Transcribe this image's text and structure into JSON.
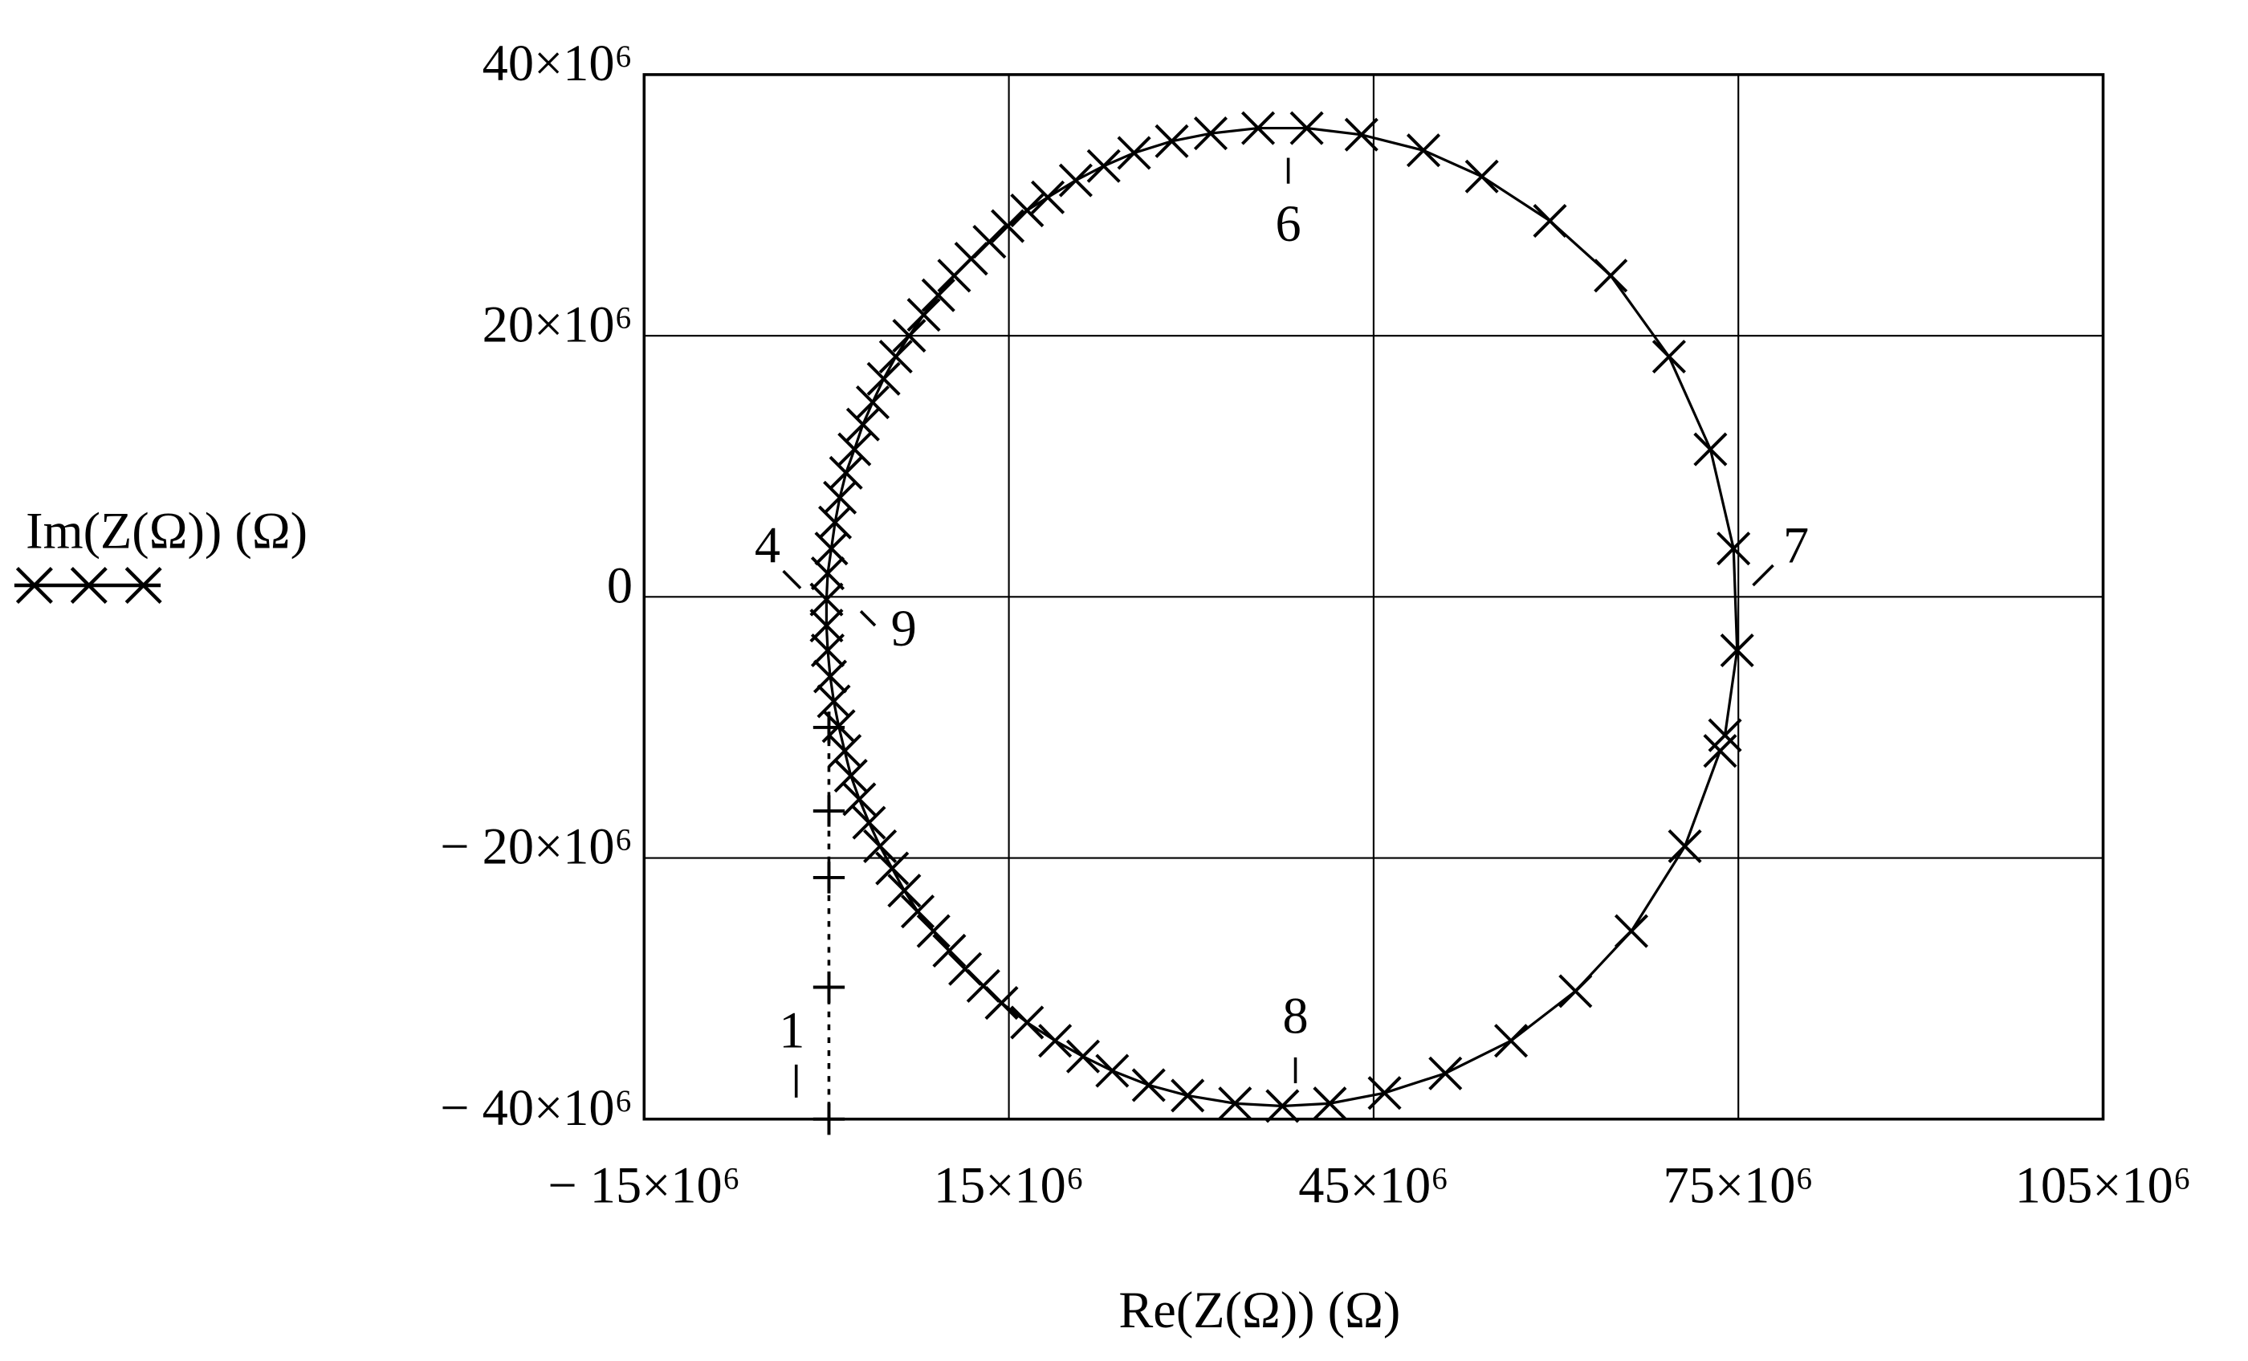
{
  "chart_data": {
    "type": "scatter",
    "x_label": "Re(Z(Ω)) (Ω)",
    "y_label": "Im(Z(Ω)) (Ω)",
    "xlim": [
      -15000000,
      105000000
    ],
    "ylim": [
      -40000000,
      40000000
    ],
    "xticks": [
      {
        "value": -15000000,
        "label": "− 15×10⁶"
      },
      {
        "value": 15000000,
        "label": "15×10⁶"
      },
      {
        "value": 45000000,
        "label": "45×10⁶"
      },
      {
        "value": 75000000,
        "label": "75×10⁶"
      },
      {
        "value": 105000000,
        "label": "105×10⁶"
      }
    ],
    "yticks": [
      {
        "value": -40000000,
        "label": "− 40×10⁶"
      },
      {
        "value": -20000000,
        "label": "− 20×10⁶"
      },
      0,
      {
        "value": 20000000,
        "label": "20×10⁶"
      },
      {
        "value": 40000000,
        "label": "40×10⁶"
      }
    ],
    "grid": true,
    "series": [
      {
        "color": "#000000",
        "marker": "x",
        "line": "solid",
        "x": [
          73900000,
          74900000,
          74600000,
          72700000,
          69300000,
          64500000,
          59500000,
          53900000,
          49100000,
          44000000,
          39500000,
          35500000,
          31600000,
          28400000,
          25300000,
          22800000,
          20500000,
          18200000,
          16500000,
          14900000,
          13400000,
          11900000,
          10500000,
          9200000,
          8000000,
          6800000,
          5700000,
          4700000,
          3800000,
          3000000,
          2300000,
          1600000,
          1100000,
          700000,
          400000,
          100000,
          0,
          0,
          100000,
          300000,
          600000,
          1000000,
          1500000,
          2000000,
          2700000,
          3500000,
          4400000,
          5400000,
          6400000,
          7500000,
          8800000,
          10100000,
          11400000,
          12900000,
          14400000,
          16500000,
          18800000,
          21100000,
          23500000,
          26500000,
          29700000,
          33600000,
          37500000,
          41400000,
          45900000,
          50900000,
          56300000,
          61600000,
          66200000,
          70600000,
          73500000
        ],
        "y": [
          -10600000,
          -4100000,
          3700000,
          11300000,
          18400000,
          24600000,
          28800000,
          32200000,
          34200000,
          35400000,
          35900000,
          35900000,
          35500000,
          34900000,
          34000000,
          33000000,
          31900000,
          30600000,
          29600000,
          28400000,
          27200000,
          25900000,
          24600000,
          23100000,
          21600000,
          20000000,
          18400000,
          16700000,
          14900000,
          13200000,
          11300000,
          9500000,
          7600000,
          5700000,
          3700000,
          1800000,
          -200000,
          -2200000,
          -4100000,
          -6100000,
          -8000000,
          -9900000,
          -11800000,
          -13700000,
          -15500000,
          -17300000,
          -19100000,
          -20800000,
          -22500000,
          -24100000,
          -25600000,
          -27100000,
          -28500000,
          -29800000,
          -31100000,
          -32600000,
          -34000000,
          -35200000,
          -36300000,
          -37400000,
          -38200000,
          -38800000,
          -39000000,
          -38800000,
          -38000000,
          -36500000,
          -34000000,
          -30200000,
          -25600000,
          -19100000,
          -11800000
        ]
      },
      {
        "color": "#000000",
        "marker": "+",
        "line": "dotted",
        "x": [
          200000,
          200000,
          200000,
          200000,
          200000
        ],
        "y": [
          -10000000,
          -16400000,
          -21500000,
          -29900000,
          -40000000
        ]
      }
    ],
    "annotations": [
      "1",
      "4",
      "6",
      "7",
      "8",
      "9"
    ]
  }
}
